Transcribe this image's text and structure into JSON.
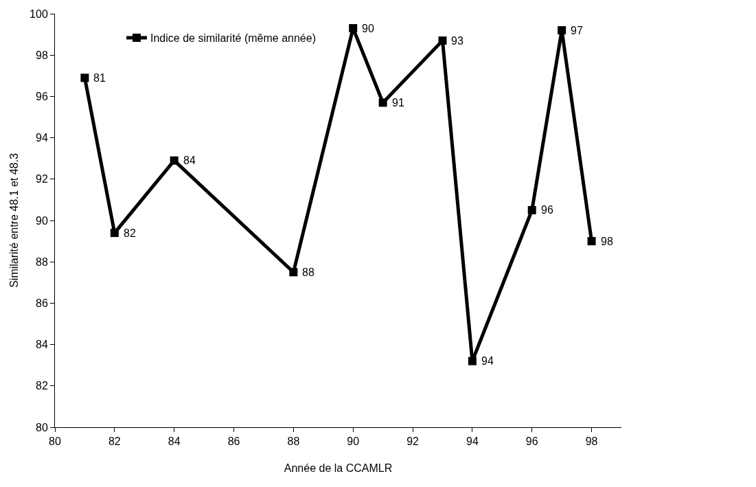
{
  "chart_data": {
    "type": "line",
    "xlabel": "Année de la CCAMLR",
    "ylabel": "Similarité entre 48.1 et 48.3",
    "x": [
      81,
      82,
      84,
      88,
      90,
      91,
      93,
      94,
      96,
      97,
      98
    ],
    "series": [
      {
        "name": "Indice de similarité (même année)",
        "color": "#000000",
        "values": [
          96.9,
          89.4,
          92.9,
          87.5,
          99.3,
          95.7,
          98.7,
          83.2,
          90.5,
          99.2,
          89.0
        ]
      }
    ],
    "annotations": [
      {
        "text": "81",
        "x": 81,
        "y": 96.9
      },
      {
        "text": "82",
        "x": 82,
        "y": 89.4
      },
      {
        "text": "84",
        "x": 84,
        "y": 92.9
      },
      {
        "text": "88",
        "x": 88,
        "y": 87.5
      },
      {
        "text": "90",
        "x": 90,
        "y": 99.3
      },
      {
        "text": "91",
        "x": 91,
        "y": 95.7
      },
      {
        "text": "93",
        "x": 93,
        "y": 98.7
      },
      {
        "text": "94",
        "x": 94,
        "y": 83.2
      },
      {
        "text": "96",
        "x": 96,
        "y": 90.5
      },
      {
        "text": "97",
        "x": 97,
        "y": 99.2
      },
      {
        "text": "98",
        "x": 98,
        "y": 89.0
      }
    ],
    "xlim": [
      80,
      99
    ],
    "xticks": [
      80,
      82,
      84,
      86,
      88,
      90,
      92,
      94,
      96,
      98
    ],
    "ylim": [
      80,
      100
    ],
    "yticks": [
      80,
      82,
      84,
      86,
      88,
      90,
      92,
      94,
      96,
      98,
      100
    ],
    "grid": false,
    "legend": "top left",
    "marker": "square",
    "line_style": "solid"
  }
}
